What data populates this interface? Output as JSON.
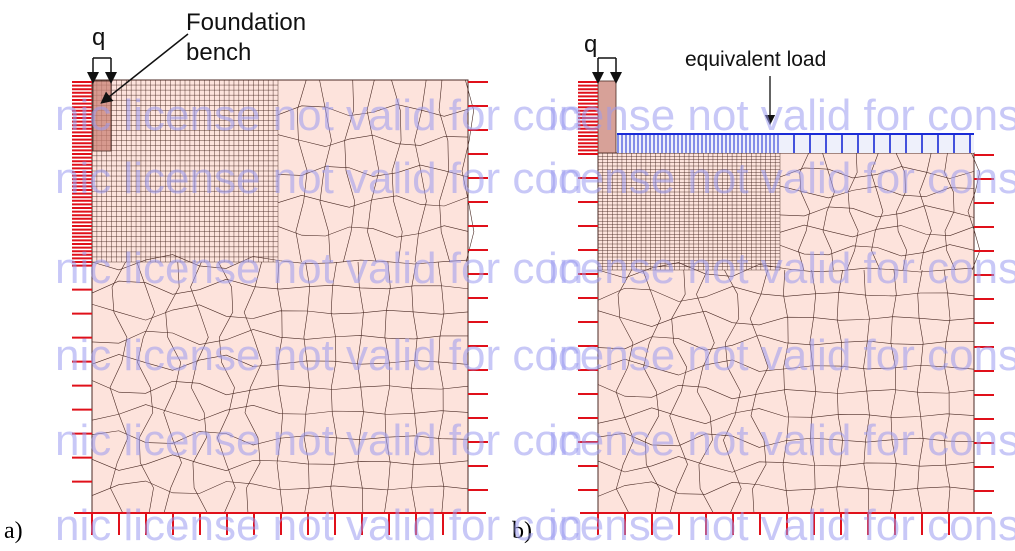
{
  "panels": [
    {
      "id": "a",
      "label": "a)",
      "load_label": "q",
      "annotation": "Foundation\nbench"
    },
    {
      "id": "b",
      "label": "b)",
      "load_label": "q",
      "annotation": "equivalent load"
    }
  ],
  "watermark": {
    "left_text": "nic license not valid for con",
    "right_text": "icense not valid for consu"
  },
  "colors": {
    "mesh_fill": "#fde3dc",
    "mesh_line": "#4a2a24",
    "bench_fill": "#c98276",
    "support": "#e0101a",
    "equivalent_load": "#1a2bd6",
    "watermark": "#9b9bf0"
  },
  "icons": [
    "load-arrow-icon",
    "support-icon",
    "pointer-arrow-icon"
  ]
}
